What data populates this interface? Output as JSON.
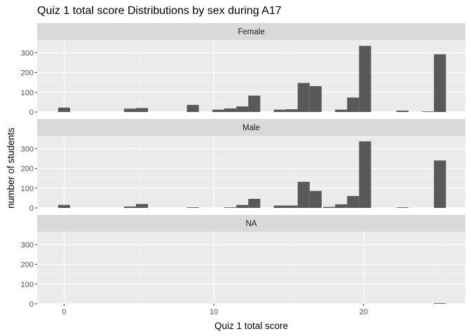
{
  "chart_data": {
    "type": "bar",
    "title": "Quiz 1 total score Distributions by sex during A17",
    "xlabel": "Quiz 1 total score",
    "ylabel": "number of students",
    "xlim": [
      -1.8,
      26.8
    ],
    "ylim": [
      0,
      365
    ],
    "x_ticks": [
      0,
      10,
      20
    ],
    "y_ticks": [
      0,
      100,
      200,
      300
    ],
    "bin_width": 0.8,
    "grid": true,
    "facets": [
      {
        "strip": "Female",
        "bins": [
          {
            "x": 0,
            "y": 22
          },
          {
            "x": 4.4,
            "y": 17
          },
          {
            "x": 5.2,
            "y": 20
          },
          {
            "x": 8.6,
            "y": 36
          },
          {
            "x": 10.3,
            "y": 12
          },
          {
            "x": 11.1,
            "y": 18
          },
          {
            "x": 11.9,
            "y": 28
          },
          {
            "x": 12.7,
            "y": 83
          },
          {
            "x": 14.4,
            "y": 12
          },
          {
            "x": 15.2,
            "y": 14
          },
          {
            "x": 16.0,
            "y": 147
          },
          {
            "x": 16.8,
            "y": 131
          },
          {
            "x": 18.5,
            "y": 12
          },
          {
            "x": 19.3,
            "y": 73
          },
          {
            "x": 20.1,
            "y": 335
          },
          {
            "x": 22.6,
            "y": 7
          },
          {
            "x": 24.3,
            "y": 2
          },
          {
            "x": 25.1,
            "y": 292
          }
        ]
      },
      {
        "strip": "Male",
        "bins": [
          {
            "x": 0,
            "y": 15
          },
          {
            "x": 4.4,
            "y": 7
          },
          {
            "x": 5.2,
            "y": 20
          },
          {
            "x": 8.6,
            "y": 3
          },
          {
            "x": 11.1,
            "y": 2
          },
          {
            "x": 11.9,
            "y": 15
          },
          {
            "x": 12.7,
            "y": 46
          },
          {
            "x": 14.4,
            "y": 12
          },
          {
            "x": 15.2,
            "y": 12
          },
          {
            "x": 16.0,
            "y": 132
          },
          {
            "x": 16.8,
            "y": 86
          },
          {
            "x": 17.7,
            "y": 5
          },
          {
            "x": 18.5,
            "y": 18
          },
          {
            "x": 19.3,
            "y": 60
          },
          {
            "x": 20.1,
            "y": 337
          },
          {
            "x": 22.6,
            "y": 2
          },
          {
            "x": 25.1,
            "y": 240
          }
        ]
      },
      {
        "strip": "NA",
        "bins": [
          {
            "x": 25.1,
            "y": 3
          }
        ]
      }
    ]
  }
}
